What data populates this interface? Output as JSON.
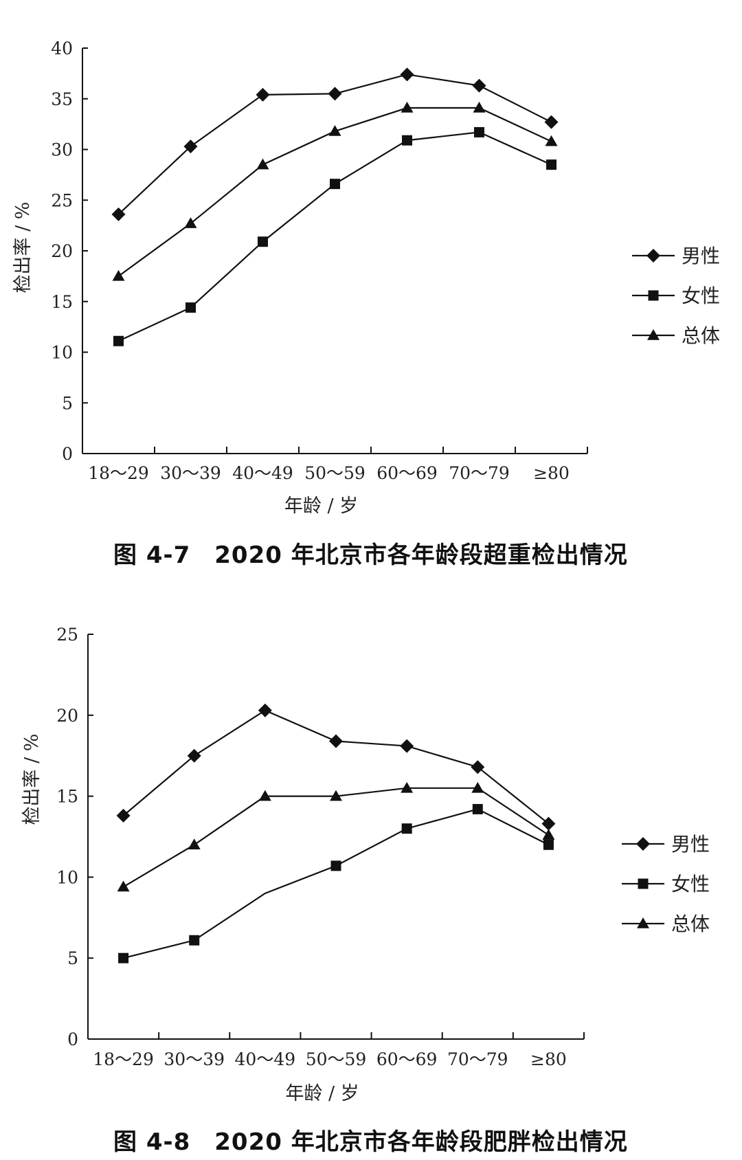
{
  "charts": [
    {
      "caption": "图 4-7　2020 年北京市各年龄段超重检出情况",
      "chart_data": {
        "type": "line",
        "categories": [
          "18～29",
          "30～39",
          "40～49",
          "50～59",
          "60～69",
          "70～79",
          "≥80"
        ],
        "xlabel": "年龄 / 岁",
        "ylabel": "检出率 / %",
        "ylim": [
          0,
          40
        ],
        "yticks": [
          0,
          5,
          10,
          15,
          20,
          25,
          30,
          35,
          40
        ],
        "grid": false,
        "legend_position": "right",
        "series": [
          {
            "name": "男性",
            "marker": "diamond",
            "values": [
              23.6,
              30.3,
              35.4,
              35.5,
              37.4,
              36.3,
              32.7
            ]
          },
          {
            "name": "女性",
            "marker": "square",
            "values": [
              11.1,
              14.4,
              20.9,
              26.6,
              30.9,
              31.7,
              28.5
            ]
          },
          {
            "name": "总体",
            "marker": "triangle",
            "values": [
              17.5,
              22.7,
              28.5,
              31.8,
              34.1,
              34.1,
              30.8
            ]
          }
        ]
      }
    },
    {
      "caption": "图 4-8　2020 年北京市各年龄段肥胖检出情况",
      "chart_data": {
        "type": "line",
        "categories": [
          "18～29",
          "30～39",
          "40～49",
          "50～59",
          "60～69",
          "70～79",
          "≥80"
        ],
        "xlabel": "年龄 / 岁",
        "ylabel": "检出率 / %",
        "ylim": [
          0,
          25
        ],
        "yticks": [
          0,
          5,
          10,
          15,
          20,
          25
        ],
        "grid": false,
        "legend_position": "right",
        "series": [
          {
            "name": "男性",
            "marker": "diamond",
            "values": [
              13.8,
              17.5,
              20.3,
              18.4,
              18.1,
              16.8,
              13.3
            ]
          },
          {
            "name": "女性",
            "marker": "square",
            "values": [
              5.0,
              6.1,
              null,
              10.7,
              13.0,
              14.2,
              12.0
            ]
          },
          {
            "name": "总体",
            "marker": "triangle",
            "values": [
              9.4,
              12.0,
              15.0,
              15.0,
              15.5,
              15.5,
              12.6
            ]
          }
        ],
        "unmarked_values": {
          "series": "女性",
          "index": 2,
          "value": 9.0
        }
      }
    }
  ]
}
